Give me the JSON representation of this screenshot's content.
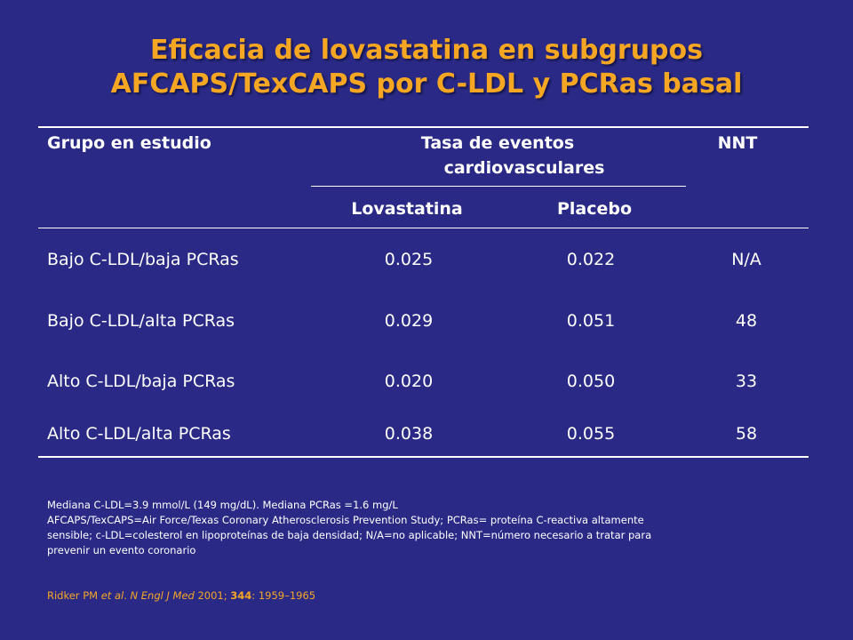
{
  "title": {
    "line1": "Eficacia de lovastatina en subgrupos",
    "line2": "AFCAPS/TexCAPS por C-LDL y PCRas basal"
  },
  "table": {
    "header": {
      "group": "Grupo en estudio",
      "rate_line1": "Tasa de eventos",
      "rate_line2": "cardiovasculares",
      "nnt": "NNT",
      "lovastatina": "Lovastatina",
      "placebo": "Placebo"
    },
    "rows": [
      {
        "group": "Bajo C-LDL/baja PCRas",
        "lovastatina": "0.025",
        "placebo": "0.022",
        "nnt": "N/A"
      },
      {
        "group": "Bajo C-LDL/alta PCRas",
        "lovastatina": "0.029",
        "placebo": "0.051",
        "nnt": "48"
      },
      {
        "group": "Alto C-LDL/baja PCRas",
        "lovastatina": "0.020",
        "placebo": "0.050",
        "nnt": "33"
      },
      {
        "group": "Alto C-LDL/alta PCRas",
        "lovastatina": "0.038",
        "placebo": "0.055",
        "nnt": "58"
      }
    ]
  },
  "notes": [
    "Mediana C-LDL=3.9 mmol/L (149 mg/dL). Mediana PCRas =1.6 mg/L",
    "AFCAPS/TexCAPS=Air Force/Texas Coronary Atherosclerosis Prevention Study; PCRas= proteína C-reactiva altamente",
    "sensible; c-LDL=colesterol en lipoproteínas  de baja densidad; N/A=no aplicable; NNT=número necesario a tratar para",
    "prevenir un evento coronario"
  ],
  "reference": {
    "authors": "Ridker PM ",
    "etal": "et al",
    "dot": ". ",
    "journal": "N Engl J Med",
    "year": " 2001; ",
    "volume": "344",
    "pages": ": 1959–1965"
  },
  "colors": {
    "background": "#2a2a86",
    "title": "#f5a623",
    "text": "#ffffff"
  }
}
